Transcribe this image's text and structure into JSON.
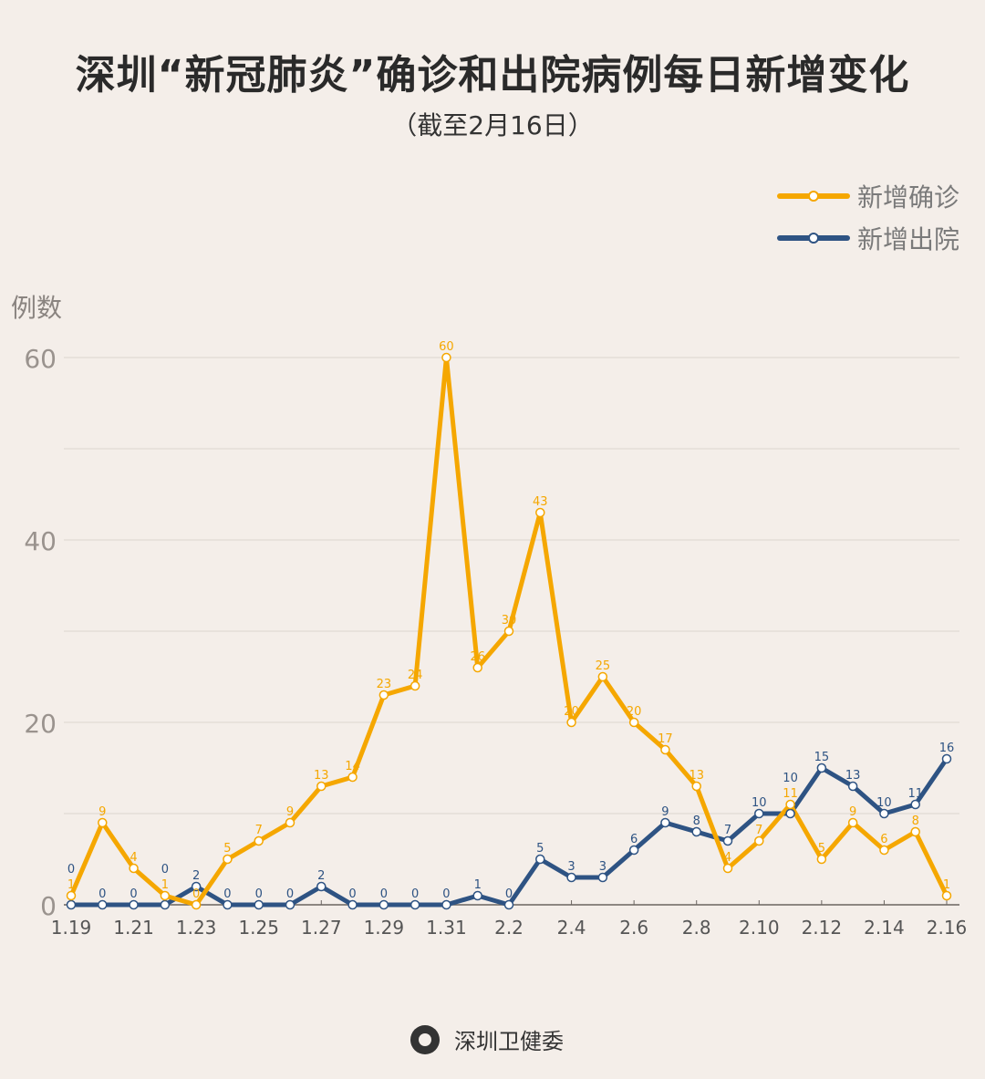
{
  "title": "深圳“新冠肺炎”确诊和出院病例每日新增变化",
  "subtitle": "（截至2月16日）",
  "footer": {
    "logo_text": "深圳卫健委",
    "source": "深圳卫健委"
  },
  "chart_data": {
    "type": "line",
    "title": "深圳“新冠肺炎”确诊和出院病例每日新增变化",
    "subtitle": "（截至2月16日）",
    "ylabel": "例数",
    "xlabel": "",
    "ylim": [
      0,
      60
    ],
    "yticks": [
      0,
      20,
      40,
      60
    ],
    "grid": true,
    "legend_position": "top-right",
    "x": [
      "1.19",
      "1.20",
      "1.21",
      "1.22",
      "1.23",
      "1.24",
      "1.25",
      "1.26",
      "1.27",
      "1.28",
      "1.29",
      "1.30",
      "1.31",
      "2.1",
      "2.2",
      "2.3",
      "2.4",
      "2.5",
      "2.6",
      "2.7",
      "2.8",
      "2.9",
      "2.10",
      "2.11",
      "2.12",
      "2.13",
      "2.14",
      "2.15",
      "2.16"
    ],
    "xtick_labels": [
      "1.19",
      "1.21",
      "1.23",
      "1.25",
      "1.27",
      "1.29",
      "1.31",
      "2.2",
      "2.4",
      "2.6",
      "2.8",
      "2.10",
      "2.12",
      "2.14",
      "2.16"
    ],
    "series": [
      {
        "name": "新增确诊",
        "color": "#f5a700",
        "values": [
          1,
          9,
          4,
          1,
          0,
          5,
          7,
          9,
          13,
          14,
          23,
          24,
          60,
          26,
          30,
          43,
          20,
          25,
          20,
          17,
          13,
          4,
          7,
          11,
          5,
          9,
          6,
          8,
          1
        ]
      },
      {
        "name": "新增出院",
        "color": "#2e5383",
        "values": [
          0,
          0,
          0,
          0,
          2,
          0,
          0,
          0,
          2,
          0,
          0,
          0,
          0,
          1,
          0,
          5,
          3,
          3,
          6,
          9,
          8,
          7,
          10,
          10,
          15,
          13,
          10,
          11,
          16
        ]
      }
    ]
  }
}
